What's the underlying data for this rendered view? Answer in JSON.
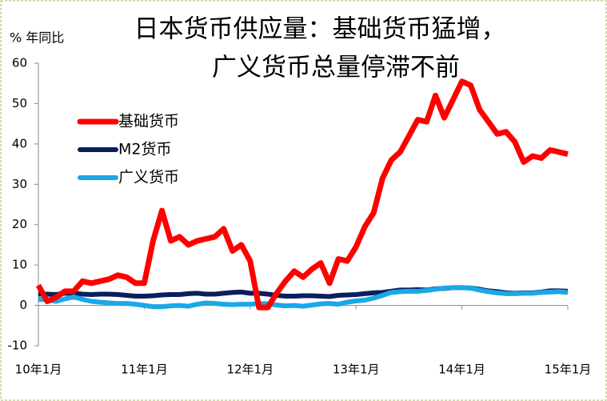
{
  "chart_data": {
    "type": "line",
    "title": [
      "日本货币供应量：基础货币猛增，",
      "广义货币总量停滞不前"
    ],
    "ylabel": "% 年同比",
    "categories": [
      "10年1月",
      null,
      null,
      null,
      null,
      null,
      null,
      null,
      null,
      null,
      null,
      null,
      "11年1月",
      null,
      null,
      null,
      null,
      null,
      null,
      null,
      null,
      null,
      null,
      null,
      "12年1月",
      null,
      null,
      null,
      null,
      null,
      null,
      null,
      null,
      null,
      null,
      null,
      "13年1月",
      null,
      null,
      null,
      null,
      null,
      null,
      null,
      null,
      null,
      null,
      null,
      "14年1月",
      null,
      null,
      null,
      null,
      null,
      null,
      null,
      null,
      null,
      null,
      null,
      "15年1月"
    ],
    "series": [
      {
        "name": "基础货币",
        "color": "#ff0000",
        "values": [
          5,
          1,
          2,
          3.5,
          3.5,
          6,
          5.5,
          6,
          6.5,
          7.5,
          7,
          5.5,
          5.5,
          16,
          23.5,
          16,
          17,
          15,
          16,
          16.5,
          17,
          19,
          13.5,
          15,
          11,
          -0.5,
          -0.5,
          3,
          6,
          8.5,
          7,
          9,
          10.5,
          5.5,
          11.5,
          11,
          14.5,
          19.5,
          23,
          31.5,
          36,
          38,
          42,
          46,
          45.5,
          52,
          46.5,
          51,
          55.5,
          54.5,
          48.5,
          45.5,
          42.5,
          43,
          40.5,
          35.5,
          37,
          36.5,
          38.5,
          38,
          37.5
        ]
      },
      {
        "name": "M2货币",
        "color": "#0b1f5c",
        "values": [
          2.8,
          2.8,
          2.7,
          3.0,
          3.0,
          2.8,
          2.7,
          2.8,
          2.8,
          2.7,
          2.5,
          2.3,
          2.3,
          2.4,
          2.6,
          2.7,
          2.7,
          2.9,
          3.0,
          2.8,
          2.8,
          3.0,
          3.2,
          3.3,
          3.0,
          3.0,
          2.8,
          2.5,
          2.3,
          2.3,
          2.4,
          2.4,
          2.3,
          2.2,
          2.5,
          2.6,
          2.7,
          2.9,
          3.1,
          3.2,
          3.5,
          3.8,
          3.8,
          3.9,
          3.8,
          4.1,
          4.2,
          4.4,
          4.4,
          4.3,
          4.0,
          3.6,
          3.4,
          3.1,
          3.0,
          3.1,
          3.1,
          3.3,
          3.6,
          3.6,
          3.5
        ]
      },
      {
        "name": "广义货币",
        "color": "#1aa8e6",
        "values": [
          1.5,
          1.4,
          1.0,
          1.6,
          2.1,
          1.5,
          1.0,
          0.8,
          0.6,
          0.5,
          0.5,
          0.3,
          0.0,
          -0.3,
          -0.3,
          -0.1,
          0.0,
          -0.2,
          0.3,
          0.6,
          0.5,
          0.3,
          0.2,
          0.3,
          0.3,
          0.5,
          0.4,
          0.1,
          -0.1,
          0.0,
          -0.2,
          0.1,
          0.4,
          0.5,
          0.3,
          0.8,
          1.1,
          1.3,
          1.8,
          2.5,
          3.2,
          3.4,
          3.5,
          3.5,
          3.7,
          4.0,
          4.3,
          4.4,
          4.4,
          4.3,
          3.8,
          3.4,
          3.1,
          2.9,
          2.9,
          3.0,
          3.0,
          3.2,
          3.3,
          3.4,
          3.2
        ]
      }
    ],
    "ylim": [
      -10,
      60
    ],
    "yticks": [
      -10,
      0,
      10,
      20,
      30,
      40,
      50,
      60
    ]
  }
}
